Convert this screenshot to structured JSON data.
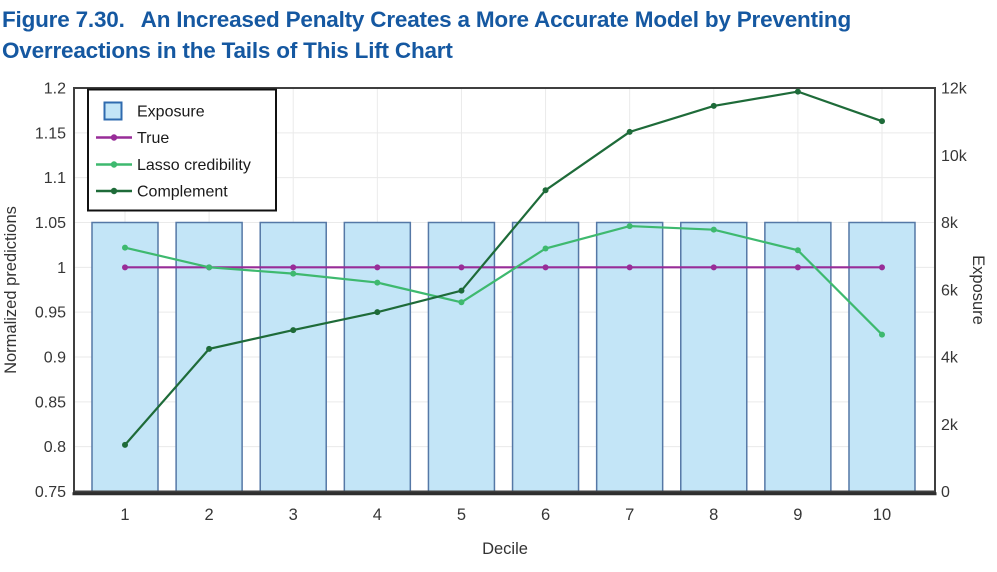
{
  "figure": {
    "label": "Figure 7.30.",
    "title_line1": "An Increased Penalty Creates a More Accurate Model by Preventing",
    "title_line2": "Overreactions in the Tails of This Lift Chart",
    "title_color": "#1558A1"
  },
  "style": {
    "grid": "#EAEAEA",
    "frame": "#3F3F3F",
    "frame_dark": "#2E2E2E",
    "tick_text": "#363636",
    "legend_border": "#111111",
    "swatch_border": "#2F6BAF"
  },
  "chart_data": {
    "type": "combo: bar + line",
    "title": "",
    "xlabel": "Decile",
    "categories": [
      "1",
      "2",
      "3",
      "4",
      "5",
      "6",
      "7",
      "8",
      "9",
      "10"
    ],
    "grid": true,
    "y_left": {
      "label": "Normalized predictions",
      "min": 0.75,
      "max": 1.2,
      "tick_values": [
        0.75,
        0.8,
        0.85,
        0.9,
        0.95,
        1,
        1.05,
        1.1,
        1.15,
        1.2
      ],
      "tick_labels": [
        "0.75",
        "0.8",
        "0.85",
        "0.9",
        "0.95",
        "1",
        "1.05",
        "1.1",
        "1.15",
        "1.2"
      ]
    },
    "y_right": {
      "label": "Exposure",
      "min": 0,
      "max": 12000,
      "tick_values": [
        0,
        2000,
        4000,
        6000,
        8000,
        10000,
        12000
      ],
      "tick_labels": [
        "0",
        "2k",
        "4k",
        "6k",
        "8k",
        "10k",
        "12k"
      ]
    },
    "bars": {
      "name": "Exposure",
      "axis": "right",
      "fill": "#C3E5F7",
      "stroke": "#5578A6",
      "values": [
        8000,
        8000,
        8000,
        8000,
        8000,
        8000,
        8000,
        8000,
        8000,
        8000
      ]
    },
    "series": [
      {
        "name": "True",
        "axis": "left",
        "color": "#982D98",
        "values": [
          1,
          1,
          1,
          1,
          1,
          1,
          1,
          1,
          1,
          1
        ]
      },
      {
        "name": "Lasso credibility",
        "axis": "left",
        "color": "#3EB96F",
        "values": [
          1.022,
          1.0,
          0.993,
          0.983,
          0.961,
          1.021,
          1.046,
          1.042,
          1.019,
          0.925
        ]
      },
      {
        "name": "Complement",
        "axis": "left",
        "color": "#1E6B39",
        "values": [
          0.802,
          0.909,
          0.93,
          0.95,
          0.974,
          1.086,
          1.151,
          1.18,
          1.196,
          1.163
        ]
      }
    ],
    "legend": {
      "position": "top-left",
      "entries": [
        "Exposure",
        "True",
        "Lasso credibility",
        "Complement"
      ]
    }
  }
}
